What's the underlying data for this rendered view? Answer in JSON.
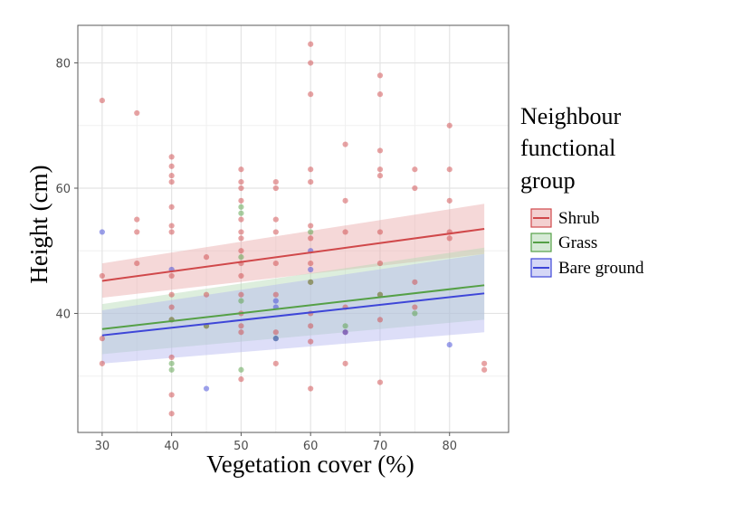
{
  "chart_data": {
    "type": "scatter",
    "title": "",
    "xlabel": "Vegetation cover (%)",
    "ylabel": "Height (cm)",
    "xlim": [
      26.5,
      88.5
    ],
    "ylim": [
      21,
      86
    ],
    "xticks": [
      30,
      40,
      50,
      60,
      70,
      80
    ],
    "yticks": [
      40,
      60,
      80
    ],
    "grid": true,
    "legend": {
      "title": "Neighbour functional group",
      "title_lines": [
        "Neighbour",
        "functional",
        "group"
      ],
      "placement": "right"
    },
    "series": [
      {
        "name": "Shrub",
        "color": "#d0484a",
        "fill": "#e9a9a9",
        "fit": {
          "x": [
            30,
            85
          ],
          "y": [
            45.2,
            53.5
          ]
        },
        "band": {
          "lower_start": 42.5,
          "lower_end": 49.5,
          "upper_start": 48.0,
          "upper_end": 57.5
        },
        "points": [
          [
            30,
            74
          ],
          [
            30,
            46
          ],
          [
            30,
            36
          ],
          [
            30,
            32
          ],
          [
            35,
            72
          ],
          [
            35,
            55
          ],
          [
            35,
            53
          ],
          [
            35,
            48
          ],
          [
            40,
            65
          ],
          [
            40,
            63.5
          ],
          [
            40,
            62
          ],
          [
            40,
            61
          ],
          [
            40,
            57
          ],
          [
            40,
            54
          ],
          [
            40,
            53
          ],
          [
            40,
            46
          ],
          [
            40,
            43
          ],
          [
            40,
            41
          ],
          [
            40,
            39
          ],
          [
            40,
            33
          ],
          [
            40,
            27
          ],
          [
            40,
            24
          ],
          [
            45,
            49
          ],
          [
            45,
            43
          ],
          [
            45,
            38
          ],
          [
            50,
            63
          ],
          [
            50,
            61
          ],
          [
            50,
            60
          ],
          [
            50,
            58
          ],
          [
            50,
            55
          ],
          [
            50,
            53
          ],
          [
            50,
            52
          ],
          [
            50,
            50
          ],
          [
            50,
            48
          ],
          [
            50,
            46
          ],
          [
            50,
            43
          ],
          [
            50,
            40
          ],
          [
            50,
            38
          ],
          [
            50,
            37
          ],
          [
            50,
            29.5
          ],
          [
            55,
            60
          ],
          [
            55,
            61
          ],
          [
            55,
            55
          ],
          [
            55,
            53
          ],
          [
            55,
            48
          ],
          [
            55,
            43
          ],
          [
            55,
            37
          ],
          [
            55,
            32
          ],
          [
            60,
            83
          ],
          [
            60,
            80
          ],
          [
            60,
            75
          ],
          [
            60,
            63
          ],
          [
            60,
            61
          ],
          [
            60,
            54
          ],
          [
            60,
            52
          ],
          [
            60,
            48
          ],
          [
            60,
            45
          ],
          [
            60,
            40
          ],
          [
            60,
            38
          ],
          [
            60,
            35.5
          ],
          [
            60,
            28
          ],
          [
            65,
            67
          ],
          [
            65,
            58
          ],
          [
            65,
            53
          ],
          [
            65,
            41
          ],
          [
            65,
            37
          ],
          [
            65,
            32
          ],
          [
            70,
            78
          ],
          [
            70,
            75
          ],
          [
            70,
            66
          ],
          [
            70,
            63
          ],
          [
            70,
            62
          ],
          [
            70,
            53
          ],
          [
            70,
            48
          ],
          [
            70,
            43
          ],
          [
            70,
            39
          ],
          [
            70,
            29
          ],
          [
            75,
            63
          ],
          [
            75,
            60
          ],
          [
            75,
            45
          ],
          [
            75,
            41
          ],
          [
            80,
            70
          ],
          [
            80,
            63
          ],
          [
            80,
            58
          ],
          [
            80,
            53
          ],
          [
            80,
            52
          ],
          [
            85,
            32
          ],
          [
            85,
            31
          ]
        ]
      },
      {
        "name": "Grass",
        "color": "#55a046",
        "fill": "#b4d9b4",
        "fit": {
          "x": [
            30,
            85
          ],
          "y": [
            37.5,
            44.5
          ]
        },
        "band": {
          "lower_start": 33.5,
          "lower_end": 39.0,
          "upper_start": 41.5,
          "upper_end": 50.5
        },
        "points": [
          [
            40,
            32
          ],
          [
            40,
            31
          ],
          [
            40,
            39
          ],
          [
            45,
            38
          ],
          [
            50,
            57
          ],
          [
            50,
            56
          ],
          [
            50,
            49
          ],
          [
            50,
            42
          ],
          [
            50,
            31
          ],
          [
            55,
            36
          ],
          [
            60,
            53
          ],
          [
            60,
            45
          ],
          [
            65,
            38
          ],
          [
            70,
            43
          ],
          [
            75,
            40
          ]
        ]
      },
      {
        "name": "Bare ground",
        "color": "#3e46d8",
        "fill": "#b3b6ef",
        "fit": {
          "x": [
            30,
            85
          ],
          "y": [
            36.5,
            43.2
          ]
        },
        "band": {
          "lower_start": 32.0,
          "lower_end": 37.0,
          "upper_start": 40.5,
          "upper_end": 49.5
        },
        "points": [
          [
            30,
            53
          ],
          [
            40,
            47
          ],
          [
            45,
            28
          ],
          [
            55,
            42
          ],
          [
            55,
            41
          ],
          [
            55,
            36
          ],
          [
            60,
            50
          ],
          [
            60,
            47
          ],
          [
            65,
            37
          ],
          [
            80,
            35
          ]
        ]
      }
    ]
  }
}
